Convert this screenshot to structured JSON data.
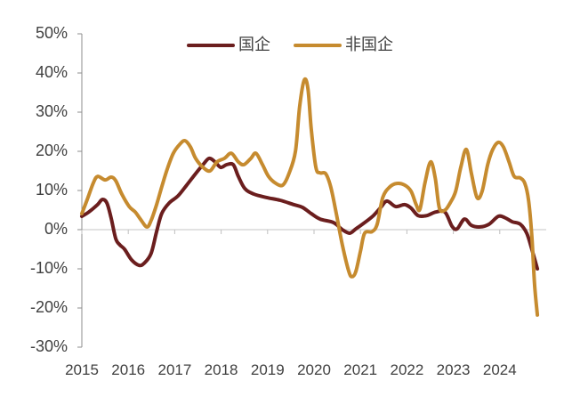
{
  "chart_data": {
    "type": "line",
    "title": "",
    "xlabel": "",
    "ylabel": "",
    "xlim": [
      2015,
      2025
    ],
    "ylim": [
      -30,
      50
    ],
    "grid": false,
    "legend": "top",
    "x_tick_labels": [
      "2015",
      "2016",
      "2017",
      "2018",
      "2019",
      "2020",
      "2021",
      "2022",
      "2023",
      "2024"
    ],
    "y_tick_values": [
      50,
      40,
      30,
      20,
      10,
      0,
      -10,
      -20,
      -30
    ],
    "y_tick_labels": [
      "50%",
      "40%",
      "30%",
      "20%",
      "10%",
      "0%",
      "-10%",
      "-20%",
      "-30%"
    ],
    "series": [
      {
        "name": "国企",
        "color": "#6b1e1e",
        "points": [
          [
            2015.0,
            3.4
          ],
          [
            2015.15,
            4.5
          ],
          [
            2015.34,
            6.4
          ],
          [
            2015.44,
            7.7
          ],
          [
            2015.54,
            6.8
          ],
          [
            2015.63,
            3.0
          ],
          [
            2015.73,
            -2.3
          ],
          [
            2015.82,
            -3.9
          ],
          [
            2015.92,
            -5.0
          ],
          [
            2016.07,
            -7.7
          ],
          [
            2016.23,
            -9.1
          ],
          [
            2016.34,
            -8.6
          ],
          [
            2016.49,
            -6.1
          ],
          [
            2016.61,
            -0.5
          ],
          [
            2016.72,
            4.1
          ],
          [
            2016.88,
            6.8
          ],
          [
            2017.07,
            8.6
          ],
          [
            2017.26,
            11.4
          ],
          [
            2017.45,
            14.3
          ],
          [
            2017.61,
            16.6
          ],
          [
            2017.74,
            18.2
          ],
          [
            2017.87,
            17.3
          ],
          [
            2017.99,
            15.9
          ],
          [
            2018.12,
            16.6
          ],
          [
            2018.26,
            16.6
          ],
          [
            2018.37,
            13.6
          ],
          [
            2018.51,
            10.5
          ],
          [
            2018.7,
            9.1
          ],
          [
            2018.98,
            8.2
          ],
          [
            2019.27,
            7.5
          ],
          [
            2019.56,
            6.4
          ],
          [
            2019.75,
            5.7
          ],
          [
            2019.94,
            4.1
          ],
          [
            2020.13,
            2.7
          ],
          [
            2020.42,
            1.8
          ],
          [
            2020.61,
            0.0
          ],
          [
            2020.77,
            -0.9
          ],
          [
            2020.9,
            0.2
          ],
          [
            2021.09,
            1.8
          ],
          [
            2021.28,
            3.6
          ],
          [
            2021.44,
            5.7
          ],
          [
            2021.57,
            7.3
          ],
          [
            2021.76,
            5.9
          ],
          [
            2021.95,
            6.4
          ],
          [
            2022.09,
            5.5
          ],
          [
            2022.24,
            3.6
          ],
          [
            2022.43,
            3.6
          ],
          [
            2022.62,
            4.5
          ],
          [
            2022.82,
            4.5
          ],
          [
            2022.97,
            0.9
          ],
          [
            2023.08,
            0.2
          ],
          [
            2023.24,
            2.7
          ],
          [
            2023.39,
            1.1
          ],
          [
            2023.58,
            0.7
          ],
          [
            2023.77,
            1.4
          ],
          [
            2023.97,
            3.4
          ],
          [
            2024.12,
            3.0
          ],
          [
            2024.27,
            2.0
          ],
          [
            2024.44,
            1.4
          ],
          [
            2024.58,
            -0.9
          ],
          [
            2024.69,
            -5.0
          ],
          [
            2024.81,
            -10.0
          ]
        ]
      },
      {
        "name": "非国企",
        "color": "#c68b2f",
        "points": [
          [
            2015.0,
            4.1
          ],
          [
            2015.11,
            7.5
          ],
          [
            2015.25,
            12.0
          ],
          [
            2015.34,
            13.6
          ],
          [
            2015.5,
            12.7
          ],
          [
            2015.63,
            13.4
          ],
          [
            2015.73,
            12.5
          ],
          [
            2015.86,
            9.1
          ],
          [
            2016.02,
            5.9
          ],
          [
            2016.15,
            4.5
          ],
          [
            2016.26,
            2.7
          ],
          [
            2016.4,
            0.7
          ],
          [
            2016.49,
            2.3
          ],
          [
            2016.61,
            6.4
          ],
          [
            2016.72,
            10.9
          ],
          [
            2016.84,
            15.5
          ],
          [
            2016.97,
            19.5
          ],
          [
            2017.11,
            21.8
          ],
          [
            2017.22,
            22.7
          ],
          [
            2017.34,
            21.1
          ],
          [
            2017.45,
            18.2
          ],
          [
            2017.61,
            15.9
          ],
          [
            2017.76,
            15.0
          ],
          [
            2017.91,
            17.3
          ],
          [
            2018.07,
            18.2
          ],
          [
            2018.22,
            19.5
          ],
          [
            2018.37,
            17.3
          ],
          [
            2018.49,
            16.6
          ],
          [
            2018.64,
            18.2
          ],
          [
            2018.75,
            19.5
          ],
          [
            2018.89,
            16.6
          ],
          [
            2019.02,
            13.6
          ],
          [
            2019.18,
            11.8
          ],
          [
            2019.33,
            11.4
          ],
          [
            2019.46,
            14.3
          ],
          [
            2019.6,
            20.0
          ],
          [
            2019.69,
            31.4
          ],
          [
            2019.79,
            38.2
          ],
          [
            2019.87,
            35.9
          ],
          [
            2019.94,
            25.7
          ],
          [
            2020.04,
            15.9
          ],
          [
            2020.13,
            14.5
          ],
          [
            2020.25,
            14.3
          ],
          [
            2020.36,
            10.9
          ],
          [
            2020.48,
            4.1
          ],
          [
            2020.61,
            -3.9
          ],
          [
            2020.75,
            -10.7
          ],
          [
            2020.82,
            -12.0
          ],
          [
            2020.9,
            -10.7
          ],
          [
            2021.0,
            -5.5
          ],
          [
            2021.09,
            -0.9
          ],
          [
            2021.25,
            -0.5
          ],
          [
            2021.36,
            1.4
          ],
          [
            2021.48,
            8.2
          ],
          [
            2021.63,
            10.9
          ],
          [
            2021.78,
            11.8
          ],
          [
            2021.95,
            11.4
          ],
          [
            2022.09,
            9.8
          ],
          [
            2022.2,
            6.4
          ],
          [
            2022.28,
            5.2
          ],
          [
            2022.39,
            12.0
          ],
          [
            2022.51,
            17.3
          ],
          [
            2022.61,
            13.2
          ],
          [
            2022.7,
            5.5
          ],
          [
            2022.82,
            5.0
          ],
          [
            2022.93,
            6.8
          ],
          [
            2023.05,
            9.8
          ],
          [
            2023.16,
            15.9
          ],
          [
            2023.28,
            20.5
          ],
          [
            2023.39,
            14.3
          ],
          [
            2023.51,
            8.2
          ],
          [
            2023.62,
            9.8
          ],
          [
            2023.74,
            16.6
          ],
          [
            2023.85,
            20.5
          ],
          [
            2023.97,
            22.3
          ],
          [
            2024.08,
            21.1
          ],
          [
            2024.2,
            17.3
          ],
          [
            2024.31,
            13.6
          ],
          [
            2024.44,
            13.2
          ],
          [
            2024.54,
            11.8
          ],
          [
            2024.62,
            7.5
          ],
          [
            2024.69,
            -1.6
          ],
          [
            2024.75,
            -14.1
          ],
          [
            2024.81,
            -21.8
          ]
        ]
      }
    ]
  }
}
